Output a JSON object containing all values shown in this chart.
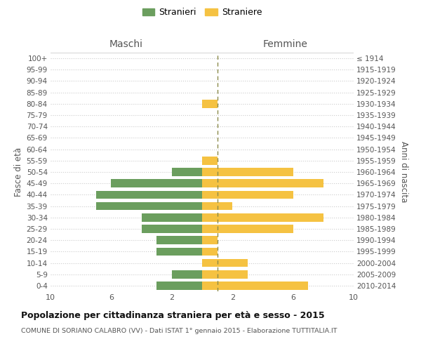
{
  "age_groups": [
    "0-4",
    "5-9",
    "10-14",
    "15-19",
    "20-24",
    "25-29",
    "30-34",
    "35-39",
    "40-44",
    "45-49",
    "50-54",
    "55-59",
    "60-64",
    "65-69",
    "70-74",
    "75-79",
    "80-84",
    "85-89",
    "90-94",
    "95-99",
    "100+"
  ],
  "birth_years": [
    "2010-2014",
    "2005-2009",
    "2000-2004",
    "1995-1999",
    "1990-1994",
    "1985-1989",
    "1980-1984",
    "1975-1979",
    "1970-1974",
    "1965-1969",
    "1960-1964",
    "1955-1959",
    "1950-1954",
    "1945-1949",
    "1940-1944",
    "1935-1939",
    "1930-1934",
    "1925-1929",
    "1920-1924",
    "1915-1919",
    "≤ 1914"
  ],
  "maschi": [
    3,
    2,
    0,
    3,
    3,
    4,
    4,
    7,
    7,
    6,
    2,
    0,
    0,
    0,
    0,
    0,
    0,
    0,
    0,
    0,
    0
  ],
  "femmine": [
    7,
    3,
    3,
    1,
    1,
    6,
    8,
    2,
    6,
    8,
    6,
    1,
    0,
    0,
    0,
    0,
    1,
    0,
    0,
    0,
    0
  ],
  "color_maschi": "#6b9e5e",
  "color_femmine": "#f5c242",
  "dashed_line_color": "#8a8a4a",
  "bg_color": "#ffffff",
  "grid_color": "#cccccc",
  "title": "Popolazione per cittadinanza straniera per età e sesso - 2015",
  "subtitle": "COMUNE DI SORIANO CALABRO (VV) - Dati ISTAT 1° gennaio 2015 - Elaborazione TUTTITALIA.IT",
  "ylabel_left": "Fasce di età",
  "ylabel_right": "Anni di nascita",
  "xlabel_left": "Maschi",
  "xlabel_right": "Femmine",
  "legend_maschi": "Stranieri",
  "legend_femmine": "Straniere",
  "xlim": 10
}
